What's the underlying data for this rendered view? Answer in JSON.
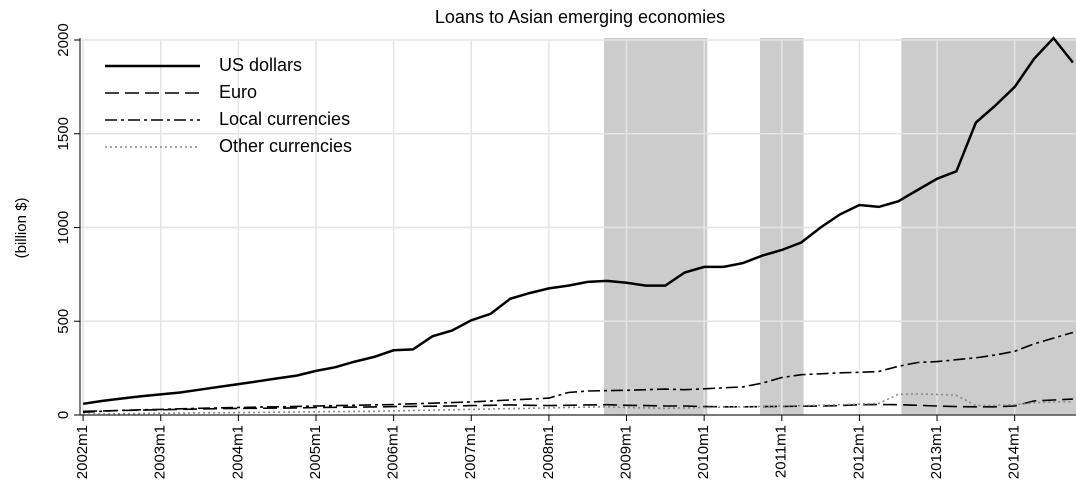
{
  "chart_data": {
    "type": "line",
    "title": "Loans to Asian emerging economies",
    "y_label": "(billion $)",
    "x": [
      2002,
      2002.25,
      2002.5,
      2002.75,
      2003,
      2003.25,
      2003.5,
      2003.75,
      2004,
      2004.25,
      2004.5,
      2004.75,
      2005,
      2005.25,
      2005.5,
      2005.75,
      2006,
      2006.25,
      2006.5,
      2006.75,
      2007,
      2007.25,
      2007.5,
      2007.75,
      2008,
      2008.25,
      2008.5,
      2008.75,
      2009,
      2009.25,
      2009.5,
      2009.75,
      2010,
      2010.25,
      2010.5,
      2010.75,
      2011,
      2011.25,
      2011.5,
      2011.75,
      2012,
      2012.25,
      2012.5,
      2012.75,
      2013,
      2013.25,
      2013.5,
      2013.75,
      2014,
      2014.25,
      2014.5,
      2014.75
    ],
    "series": [
      {
        "name": "US dollars",
        "color": "#000000",
        "style": "solid",
        "values": [
          60,
          75,
          88,
          100,
          110,
          120,
          135,
          150,
          165,
          180,
          195,
          210,
          235,
          255,
          285,
          310,
          345,
          350,
          420,
          450,
          505,
          540,
          620,
          650,
          675,
          690,
          710,
          715,
          705,
          690,
          690,
          760,
          790,
          790,
          810,
          850,
          880,
          920,
          1000,
          1070,
          1120,
          1110,
          1140,
          1200,
          1260,
          1300,
          1560,
          1650,
          1750,
          1900,
          2010,
          1880
        ]
      },
      {
        "name": "Euro",
        "color": "#000000",
        "style": "dashed",
        "values": [
          20,
          22,
          24,
          26,
          28,
          30,
          32,
          34,
          35,
          36,
          37,
          38,
          40,
          41,
          42,
          43,
          45,
          46,
          47,
          48,
          50,
          52,
          54,
          52,
          50,
          52,
          54,
          55,
          52,
          50,
          48,
          48,
          45,
          44,
          44,
          45,
          46,
          47,
          48,
          50,
          55,
          56,
          55,
          52,
          48,
          45,
          44,
          44,
          48,
          75,
          80,
          85
        ]
      },
      {
        "name": "Local currencies",
        "color": "#000000",
        "style": "dashdot",
        "values": [
          15,
          20,
          25,
          28,
          30,
          33,
          36,
          38,
          40,
          42,
          44,
          46,
          48,
          50,
          52,
          54,
          56,
          60,
          63,
          66,
          70,
          75,
          80,
          85,
          90,
          120,
          128,
          130,
          132,
          135,
          138,
          135,
          140,
          145,
          150,
          170,
          200,
          215,
          220,
          225,
          228,
          232,
          260,
          280,
          285,
          295,
          305,
          320,
          340,
          380,
          410,
          440
        ]
      },
      {
        "name": "Other currencies",
        "color": "#888888",
        "style": "dotted",
        "values": [
          5,
          6,
          7,
          8,
          9,
          10,
          11,
          12,
          13,
          14,
          15,
          16,
          17,
          18,
          19,
          20,
          22,
          24,
          26,
          28,
          30,
          32,
          34,
          36,
          38,
          40,
          42,
          44,
          40,
          38,
          36,
          38,
          40,
          42,
          44,
          46,
          48,
          50,
          52,
          55,
          58,
          62,
          110,
          112,
          110,
          105,
          50,
          52,
          55,
          65,
          70,
          70
        ]
      }
    ],
    "shaded": [
      [
        2008.71,
        2010.04
      ],
      [
        2010.72,
        2011.28
      ],
      [
        2012.54,
        2014.79
      ]
    ],
    "xlim": [
      2001.96,
      2014.79
    ],
    "xticks": [
      {
        "value": 2002,
        "label": "2002m1"
      },
      {
        "value": 2003,
        "label": "2003m1"
      },
      {
        "value": 2004,
        "label": "2004m1"
      },
      {
        "value": 2005,
        "label": "2005m1"
      },
      {
        "value": 2006,
        "label": "2006m1"
      },
      {
        "value": 2007,
        "label": "2007m1"
      },
      {
        "value": 2008,
        "label": "2008m1"
      },
      {
        "value": 2009,
        "label": "2009m1"
      },
      {
        "value": 2010,
        "label": "2010m1"
      },
      {
        "value": 2011,
        "label": "2011m1"
      },
      {
        "value": 2012,
        "label": "2012m1"
      },
      {
        "value": 2013,
        "label": "2013m1"
      },
      {
        "value": 2014,
        "label": "2014m1"
      }
    ],
    "ylim": [
      0,
      2000
    ],
    "yticks": [
      0,
      500,
      1000,
      1500,
      2000
    ],
    "grid": true,
    "legend": "upper left"
  }
}
